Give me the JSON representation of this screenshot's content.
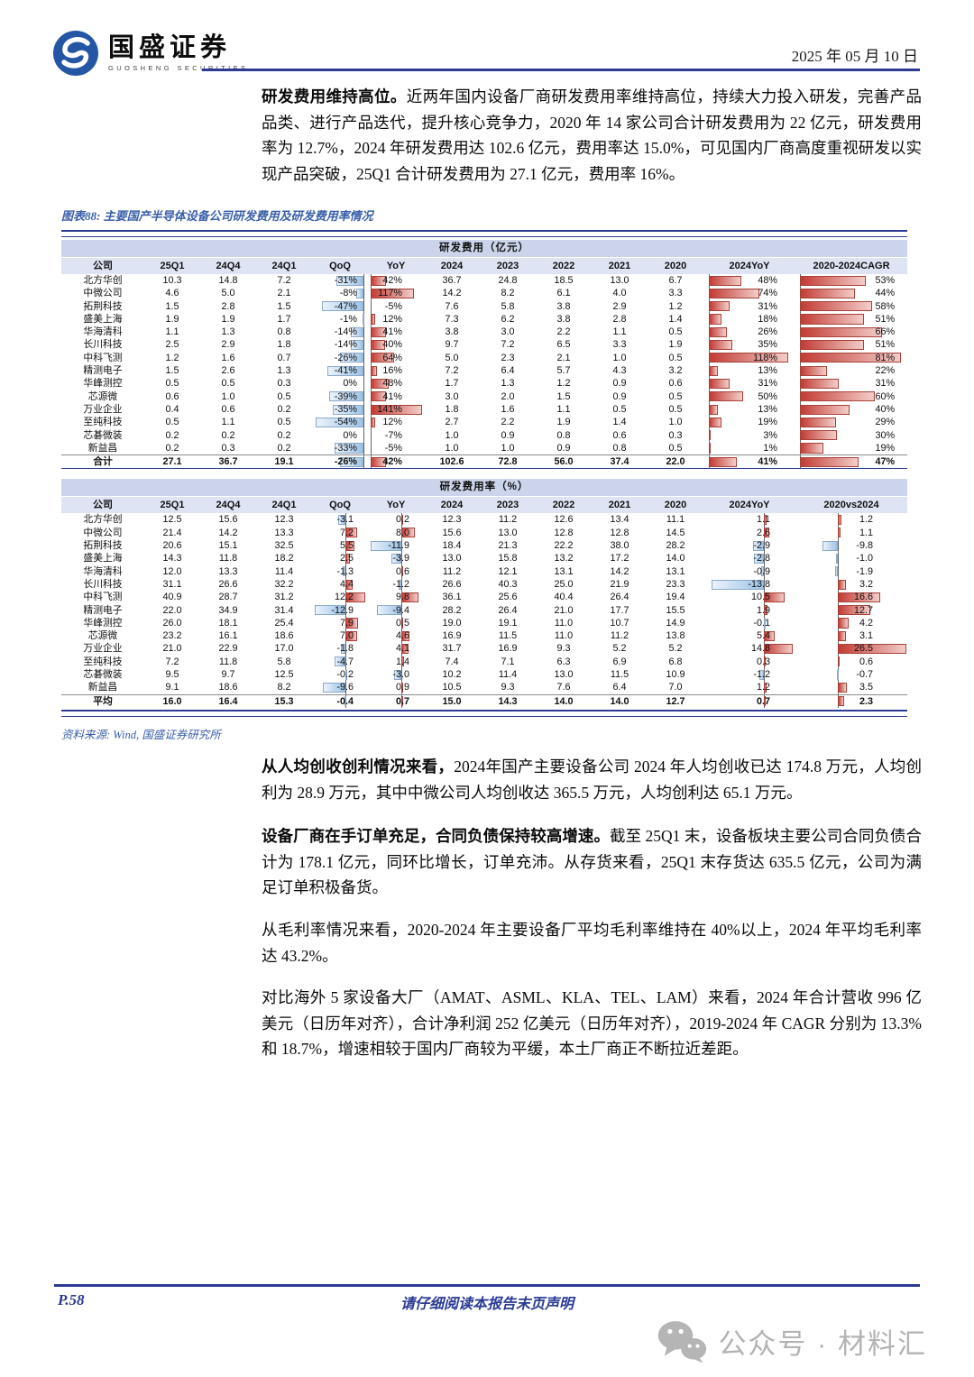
{
  "header": {
    "logo_cn": "国盛证券",
    "logo_en": "GUOSHENG SECURITIES",
    "date": "2025 年 05 月 10 日"
  },
  "paragraphs": [
    {
      "lead": "研发费用维持高位。",
      "text": "近两年国内设备厂商研发费用率维持高位，持续大力投入研发，完善产品品类、进行产品迭代，提升核心竞争力，2020 年 14 家公司合计研发费用为 22 亿元，研发费用率为 12.7%，2024 年研发费用达 102.6 亿元，费用率达 15.0%，可见国内厂商高度重视研发以实现产品突破，25Q1 合计研发费用为 27.1 亿元，费用率 16%。"
    },
    {
      "lead": "从人均创收创利情况来看，",
      "text": "2024年国产主要设备公司 2024 年人均创收已达 174.8 万元，人均创利为 28.9 万元，其中中微公司人均创收达 365.5 万元，人均创利达 65.1 万元。"
    },
    {
      "lead": "设备厂商在手订单充足，合同负债保持较高增速。",
      "text": "截至 25Q1 末，设备板块主要公司合同负债合计为 178.1 亿元，同环比增长，订单充沛。从存货来看，25Q1 末存货达 635.5 亿元，公司为满足订单积极备货。"
    },
    {
      "lead": "",
      "text": "从毛利率情况来看，2020-2024 年主要设备厂平均毛利率维持在 40%以上，2024 年平均毛利率达 43.2%。"
    },
    {
      "lead": "",
      "text": "对比海外 5 家设备大厂（AMAT、ASML、KLA、TEL、LAM）来看，2024 年合计营收 996 亿美元（日历年对齐），合计净利润 252 亿美元（日历年对齐），2019-2024 年 CAGR 分别为 13.3%和 18.7%，增速相较于国内厂商较为平缓，本土厂商正不断拉近差距。"
    }
  ],
  "figure": {
    "caption": "图表88: 主要国产半导体设备公司研发费用及研发费用率情况",
    "source": "资料来源: Wind, 国盛证券研究所",
    "tables": [
      {
        "title": "研发费用（亿元）",
        "columns": [
          "公司",
          "25Q1",
          "24Q4",
          "24Q1",
          "QoQ",
          "YoY",
          "2024",
          "2023",
          "2022",
          "2021",
          "2020",
          "2024YoY",
          "2020-2024CAGR"
        ],
        "rows": [
          [
            "北方华创",
            "10.3",
            "14.8",
            "7.2",
            "-31%",
            "42%",
            "36.7",
            "24.8",
            "18.5",
            "13.0",
            "6.7",
            "48%",
            "53%"
          ],
          [
            "中微公司",
            "4.6",
            "5.0",
            "2.1",
            "-8%",
            "117%",
            "14.2",
            "8.2",
            "6.1",
            "4.0",
            "3.3",
            "74%",
            "44%"
          ],
          [
            "拓荆科技",
            "1.5",
            "2.8",
            "1.5",
            "-47%",
            "-5%",
            "7.6",
            "5.8",
            "3.8",
            "2.9",
            "1.2",
            "31%",
            "58%"
          ],
          [
            "盛美上海",
            "1.9",
            "1.9",
            "1.7",
            "-1%",
            "12%",
            "7.3",
            "6.2",
            "3.8",
            "2.8",
            "1.4",
            "18%",
            "51%"
          ],
          [
            "华海清科",
            "1.1",
            "1.3",
            "0.8",
            "-14%",
            "41%",
            "3.8",
            "3.0",
            "2.2",
            "1.1",
            "0.5",
            "26%",
            "66%"
          ],
          [
            "长川科技",
            "2.5",
            "2.9",
            "1.8",
            "-14%",
            "40%",
            "9.7",
            "7.2",
            "6.5",
            "3.3",
            "1.9",
            "35%",
            "51%"
          ],
          [
            "中科飞测",
            "1.2",
            "1.6",
            "0.7",
            "-26%",
            "64%",
            "5.0",
            "2.3",
            "2.1",
            "1.0",
            "0.5",
            "118%",
            "81%"
          ],
          [
            "精测电子",
            "1.5",
            "2.6",
            "1.3",
            "-41%",
            "16%",
            "7.2",
            "6.4",
            "5.7",
            "4.3",
            "3.2",
            "13%",
            "22%"
          ],
          [
            "华峰测控",
            "0.5",
            "0.5",
            "0.3",
            "0%",
            "48%",
            "1.7",
            "1.3",
            "1.2",
            "0.9",
            "0.6",
            "31%",
            "31%"
          ],
          [
            "芯源微",
            "0.6",
            "1.0",
            "0.5",
            "-39%",
            "41%",
            "3.0",
            "2.0",
            "1.5",
            "0.9",
            "0.5",
            "50%",
            "60%"
          ],
          [
            "万业企业",
            "0.4",
            "0.6",
            "0.2",
            "-35%",
            "141%",
            "1.8",
            "1.6",
            "1.1",
            "0.5",
            "0.5",
            "13%",
            "40%"
          ],
          [
            "至纯科技",
            "0.5",
            "1.1",
            "0.5",
            "-54%",
            "12%",
            "2.7",
            "2.2",
            "1.9",
            "1.4",
            "1.0",
            "19%",
            "29%"
          ],
          [
            "芯碁微装",
            "0.2",
            "0.2",
            "0.2",
            "0%",
            "-7%",
            "1.0",
            "0.9",
            "0.8",
            "0.6",
            "0.3",
            "3%",
            "30%"
          ],
          [
            "新益昌",
            "0.2",
            "0.3",
            "0.2",
            "-33%",
            "-5%",
            "1.0",
            "1.0",
            "0.9",
            "0.8",
            "0.5",
            "1%",
            "19%"
          ]
        ],
        "summary": [
          "合计",
          "27.1",
          "36.7",
          "19.1",
          "-26%",
          "42%",
          "102.6",
          "72.8",
          "56.0",
          "37.4",
          "22.0",
          "41%",
          "47%"
        ]
      },
      {
        "title": "研发费用率（%）",
        "columns": [
          "公司",
          "25Q1",
          "24Q4",
          "24Q1",
          "QoQ",
          "YoY",
          "2024",
          "2023",
          "2022",
          "2021",
          "2020",
          "2024YoY",
          "2020vs2024"
        ],
        "rows": [
          [
            "北方华创",
            "12.5",
            "15.6",
            "12.3",
            "-3.1",
            "0.2",
            "12.3",
            "11.2",
            "12.6",
            "13.4",
            "11.1",
            "1.1",
            "1.2"
          ],
          [
            "中微公司",
            "21.4",
            "14.2",
            "13.3",
            "7.2",
            "8.0",
            "15.6",
            "13.0",
            "12.8",
            "12.8",
            "14.5",
            "2.6",
            "1.1"
          ],
          [
            "拓荆科技",
            "20.6",
            "15.1",
            "32.5",
            "5.5",
            "-11.9",
            "18.4",
            "21.3",
            "22.2",
            "38.0",
            "28.2",
            "-2.9",
            "-9.8"
          ],
          [
            "盛美上海",
            "14.3",
            "11.8",
            "18.2",
            "2.5",
            "-3.9",
            "13.0",
            "15.8",
            "13.2",
            "17.2",
            "14.0",
            "-2.8",
            "-1.0"
          ],
          [
            "华海清科",
            "12.0",
            "13.3",
            "11.4",
            "-1.3",
            "0.6",
            "11.2",
            "12.1",
            "13.1",
            "14.2",
            "13.1",
            "-0.9",
            "-1.9"
          ],
          [
            "长川科技",
            "31.1",
            "26.6",
            "32.2",
            "4.4",
            "-1.2",
            "26.6",
            "40.3",
            "25.0",
            "21.9",
            "23.3",
            "-13.8",
            "3.2"
          ],
          [
            "中科飞测",
            "40.9",
            "28.7",
            "31.2",
            "12.2",
            "9.8",
            "36.1",
            "25.6",
            "40.4",
            "26.4",
            "19.4",
            "10.5",
            "16.6"
          ],
          [
            "精测电子",
            "22.0",
            "34.9",
            "31.4",
            "-12.9",
            "-9.4",
            "28.2",
            "26.4",
            "21.0",
            "17.7",
            "15.5",
            "1.9",
            "12.7"
          ],
          [
            "华峰测控",
            "26.0",
            "18.1",
            "25.4",
            "7.9",
            "0.5",
            "19.0",
            "19.1",
            "11.0",
            "10.7",
            "14.9",
            "-0.1",
            "4.2"
          ],
          [
            "芯源微",
            "23.2",
            "16.1",
            "18.6",
            "7.0",
            "4.6",
            "16.9",
            "11.5",
            "11.0",
            "11.2",
            "13.8",
            "5.4",
            "3.1"
          ],
          [
            "万业企业",
            "21.0",
            "22.9",
            "17.0",
            "-1.8",
            "4.1",
            "31.7",
            "16.9",
            "9.3",
            "5.2",
            "5.2",
            "14.8",
            "26.5"
          ],
          [
            "至纯科技",
            "7.2",
            "11.8",
            "5.8",
            "-4.7",
            "1.4",
            "7.4",
            "7.1",
            "6.3",
            "6.9",
            "6.8",
            "0.3",
            "0.6"
          ],
          [
            "芯碁微装",
            "9.5",
            "9.7",
            "12.5",
            "-0.2",
            "-3.0",
            "10.2",
            "11.4",
            "13.0",
            "11.5",
            "10.9",
            "-1.2",
            "-0.7"
          ],
          [
            "新益昌",
            "9.1",
            "18.6",
            "8.2",
            "-9.6",
            "0.9",
            "10.5",
            "9.3",
            "7.6",
            "6.4",
            "7.0",
            "1.2",
            "3.5"
          ]
        ],
        "summary": [
          "平均",
          "16.0",
          "16.4",
          "15.3",
          "-0.4",
          "0.7",
          "15.0",
          "14.3",
          "14.0",
          "14.0",
          "12.7",
          "0.7",
          "2.3"
        ]
      }
    ]
  },
  "footer": {
    "page": "P.58",
    "disclaimer": "请仔细阅读本报告末页声明"
  },
  "watermark": {
    "icon": "wechat-icon",
    "text": "公众号 · 材料汇"
  },
  "colors": {
    "navy": "#2B3A92",
    "caption_blue": "#3A5FA9",
    "table_band": "#CBD4EA",
    "table_header_row": "#DEE4F3",
    "bar_red": "#C23B34",
    "bar_red_light": "#F3CDC9",
    "bar_blue": "#9DC3E6",
    "bar_blue_light": "#EAF2FB",
    "watermark_gray": "#B3B3B3"
  }
}
